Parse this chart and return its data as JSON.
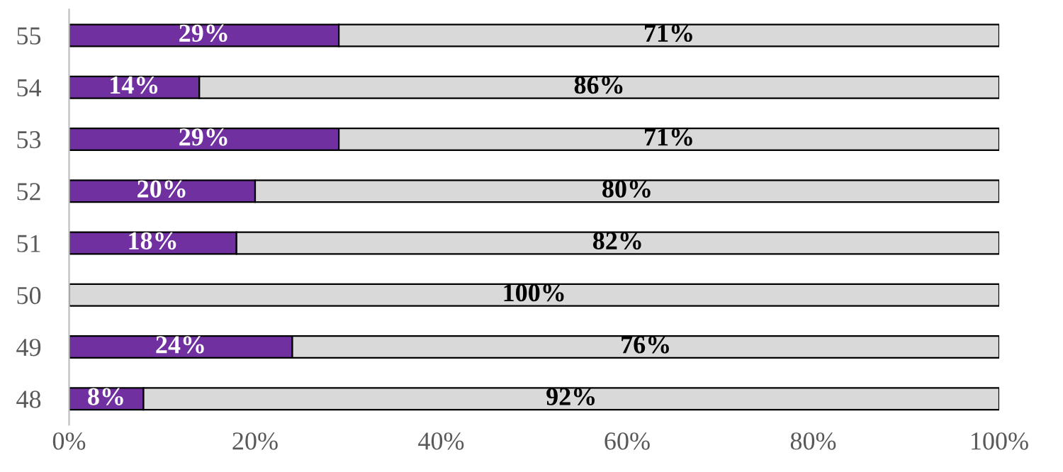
{
  "chart_data": {
    "type": "bar",
    "orientation": "horizontal",
    "stacked": true,
    "categories": [
      "55",
      "54",
      "53",
      "52",
      "51",
      "50",
      "49",
      "48"
    ],
    "series": [
      {
        "color": "#7030a0",
        "values": [
          29,
          14,
          29,
          20,
          18,
          0,
          24,
          8
        ],
        "value_labels": [
          "29%",
          "14%",
          "29%",
          "20%",
          "18%",
          null,
          "24%",
          "8%"
        ]
      },
      {
        "color": "#d9d9d9",
        "values": [
          71,
          86,
          71,
          80,
          82,
          100,
          76,
          92
        ],
        "value_labels": [
          "71%",
          "86%",
          "71%",
          "80%",
          "82%",
          "100%",
          "76%",
          "92%"
        ]
      }
    ],
    "xlim": [
      0,
      100
    ],
    "xticks": [
      {
        "value": 0,
        "label": "0%"
      },
      {
        "value": 20,
        "label": "20%"
      },
      {
        "value": 40,
        "label": "40%"
      },
      {
        "value": 60,
        "label": "60%"
      },
      {
        "value": 80,
        "label": "80%"
      },
      {
        "value": 100,
        "label": "100%"
      }
    ],
    "grid": false
  }
}
